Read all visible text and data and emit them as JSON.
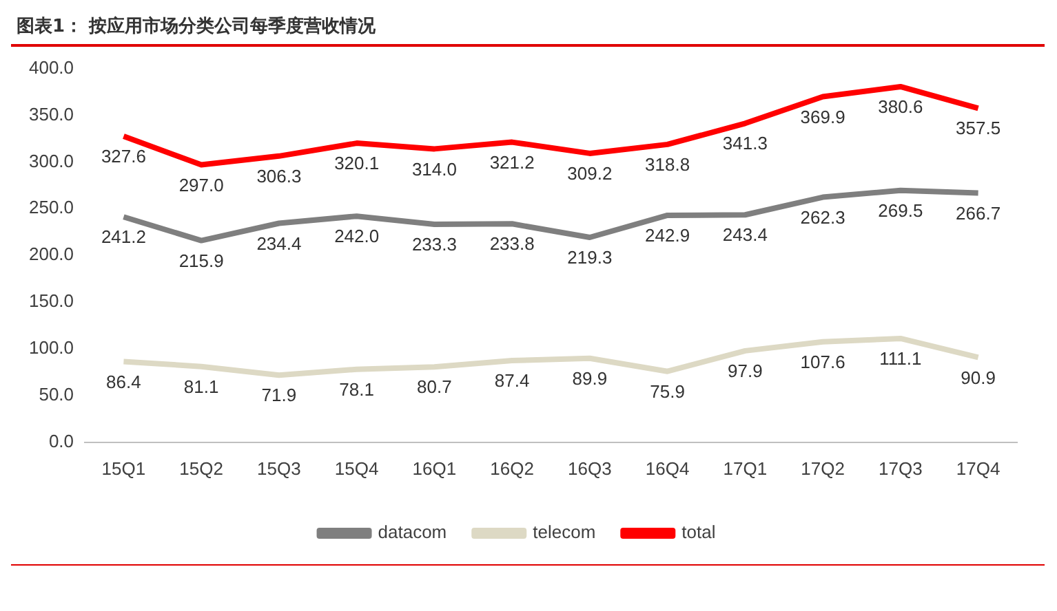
{
  "chart_data": {
    "type": "line",
    "title": "图表1： 按应用市场分类公司每季度营收情况",
    "categories": [
      "15Q1",
      "15Q2",
      "15Q3",
      "15Q4",
      "16Q1",
      "16Q2",
      "16Q3",
      "16Q4",
      "17Q1",
      "17Q2",
      "17Q3",
      "17Q4"
    ],
    "series": [
      {
        "name": "datacom",
        "color": "#7f7f7f",
        "values": [
          241.2,
          215.9,
          234.4,
          242.0,
          233.3,
          233.8,
          219.3,
          242.9,
          243.4,
          262.3,
          269.5,
          266.7
        ],
        "value_labels": [
          "241.2",
          "215.9",
          "234.4",
          "242.0",
          "233.3",
          "233.8",
          "219.3",
          "242.9",
          "243.4",
          "262.3",
          "269.5",
          "266.7"
        ]
      },
      {
        "name": "telecom",
        "color": "#ddd9c4",
        "values": [
          86.4,
          81.1,
          71.9,
          78.1,
          80.7,
          87.4,
          89.9,
          75.9,
          97.9,
          107.6,
          111.1,
          90.9
        ],
        "value_labels": [
          "86.4",
          "81.1",
          "71.9",
          "78.1",
          "80.7",
          "87.4",
          "89.9",
          "75.9",
          "97.9",
          "107.6",
          "111.1",
          "90.9"
        ]
      },
      {
        "name": "total",
        "color": "#ff0000",
        "values": [
          327.6,
          297.0,
          306.3,
          320.1,
          314.0,
          321.2,
          309.2,
          318.8,
          341.3,
          369.9,
          380.6,
          357.5
        ],
        "value_labels": [
          "327.6",
          "297.0",
          "306.3",
          "320.1",
          "314.0",
          "321.2",
          "309.2",
          "318.8",
          "341.3",
          "369.9",
          "380.6",
          "357.5"
        ]
      }
    ],
    "ylim": [
      0,
      400
    ],
    "yticks": [
      {
        "value": 0,
        "label": "0.0"
      },
      {
        "value": 50,
        "label": "50.0"
      },
      {
        "value": 100,
        "label": "100.0"
      },
      {
        "value": 150,
        "label": "150.0"
      },
      {
        "value": 200,
        "label": "200.0"
      },
      {
        "value": 250,
        "label": "250.0"
      },
      {
        "value": 300,
        "label": "300.0"
      },
      {
        "value": 350,
        "label": "350.0"
      },
      {
        "value": 400,
        "label": "400.0"
      }
    ],
    "grid": false,
    "legend": "bottom",
    "marker": "none",
    "line_style": "solid"
  }
}
